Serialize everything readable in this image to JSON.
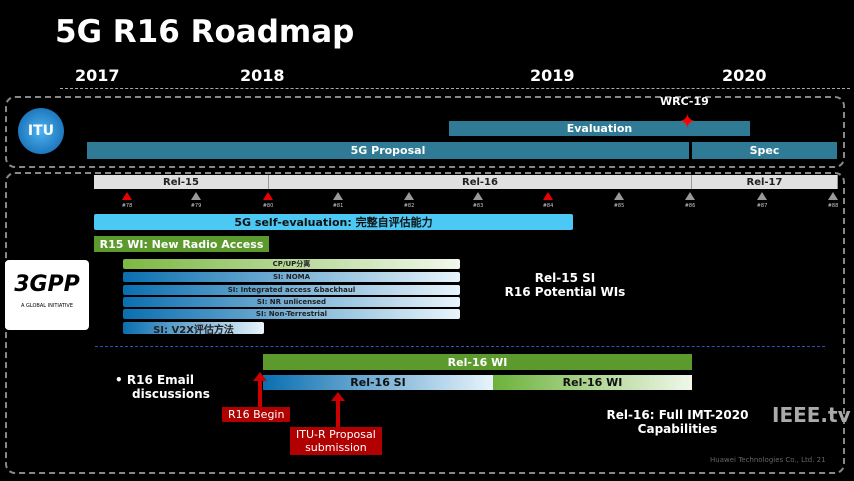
{
  "title": "5G R16 Roadmap",
  "years": [
    "2017",
    "2018",
    "2019",
    "2020"
  ],
  "itu": {
    "logo_text": "ITU",
    "wrc": "WRC-19",
    "evaluation": "Evaluation",
    "proposal": "5G Proposal",
    "spec": "Spec"
  },
  "releases": [
    "Rel-15",
    "Rel-16",
    "Rel-17"
  ],
  "meetings": [
    {
      "label": "#78",
      "highlight": true
    },
    {
      "label": "#79",
      "highlight": false
    },
    {
      "label": "#80",
      "highlight": true
    },
    {
      "label": "#81",
      "highlight": false
    },
    {
      "label": "#82",
      "highlight": false
    },
    {
      "label": "#83",
      "highlight": false
    },
    {
      "label": "#84",
      "highlight": true
    },
    {
      "label": "#85",
      "highlight": false
    },
    {
      "label": "#86",
      "highlight": false
    },
    {
      "label": "#87",
      "highlight": false
    },
    {
      "label": "#88",
      "highlight": false
    }
  ],
  "self_eval": "5G self-evaluation: 完整自评估能力",
  "r15_wi": "R15 WI: New Radio Access",
  "threegpp": {
    "logo_text": "3GPP",
    "tagline": "A GLOBAL INITIATIVE"
  },
  "study_items": [
    "CP/UP分离",
    "SI: NOMA",
    "SI: Integrated access &backhaul",
    "SI: NR unlicensed",
    "SI: Non-Terrestrial"
  ],
  "v2x": "SI: V2X评估方法",
  "rel15_note": [
    "Rel-15 SI",
    "R16 Potential WIs"
  ],
  "rel16_wi": "Rel-16 WI",
  "rel16_si": "Rel-16 SI",
  "rel16_wi2": "Rel-16 WI",
  "email": [
    "R16 Email",
    "discussions"
  ],
  "r16_begin": "R16 Begin",
  "itu_submission": [
    "ITU-R Proposal",
    "submission"
  ],
  "full_imt": [
    "Rel-16: Full IMT-2020",
    "Capabilities"
  ],
  "watermark": "IEEE.tv",
  "footer": "Huawei Technologies Co., Ltd.  21"
}
